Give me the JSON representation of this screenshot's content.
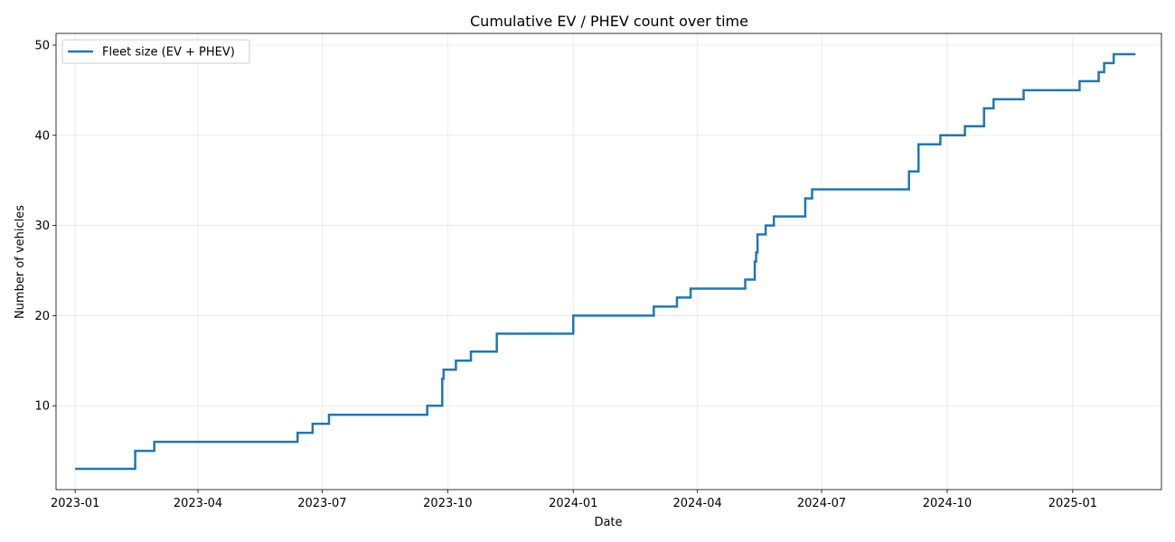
{
  "chart_data": {
    "type": "line",
    "title": "Cumulative EV / PHEV count over time",
    "xlabel": "Date",
    "ylabel": "Number of vehicles",
    "x_axis": "date",
    "xlim": [
      "2022-12-18",
      "2025-03-07"
    ],
    "ylim": [
      0.7,
      51.3
    ],
    "x_ticks": [
      "2023-01-01",
      "2023-04-01",
      "2023-07-01",
      "2023-10-01",
      "2024-01-01",
      "2024-04-01",
      "2024-07-01",
      "2024-10-01",
      "2025-01-01"
    ],
    "x_tick_labels": [
      "2023-01",
      "2023-04",
      "2023-07",
      "2023-10",
      "2024-01",
      "2024-04",
      "2024-07",
      "2024-10",
      "2025-01"
    ],
    "y_ticks": [
      10,
      20,
      30,
      40,
      50
    ],
    "y_tick_labels": [
      "10",
      "20",
      "30",
      "40",
      "50"
    ],
    "grid": true,
    "legend_position": "upper-left",
    "line_color": "#1f77b4",
    "series": [
      {
        "name": "Fleet size (EV + PHEV)",
        "step": true,
        "points": [
          [
            "2023-01-01",
            3
          ],
          [
            "2023-02-14",
            5
          ],
          [
            "2023-02-28",
            6
          ],
          [
            "2023-06-13",
            7
          ],
          [
            "2023-06-24",
            8
          ],
          [
            "2023-07-06",
            9
          ],
          [
            "2023-09-16",
            10
          ],
          [
            "2023-09-27",
            13
          ],
          [
            "2023-09-28",
            14
          ],
          [
            "2023-10-07",
            15
          ],
          [
            "2023-10-18",
            16
          ],
          [
            "2023-11-06",
            18
          ],
          [
            "2024-01-01",
            20
          ],
          [
            "2024-02-29",
            21
          ],
          [
            "2024-03-17",
            22
          ],
          [
            "2024-03-27",
            23
          ],
          [
            "2024-05-06",
            24
          ],
          [
            "2024-05-13",
            26
          ],
          [
            "2024-05-14",
            27
          ],
          [
            "2024-05-15",
            29
          ],
          [
            "2024-05-21",
            30
          ],
          [
            "2024-05-27",
            31
          ],
          [
            "2024-06-19",
            33
          ],
          [
            "2024-06-24",
            34
          ],
          [
            "2024-09-03",
            36
          ],
          [
            "2024-09-10",
            39
          ],
          [
            "2024-09-26",
            40
          ],
          [
            "2024-10-14",
            41
          ],
          [
            "2024-10-28",
            43
          ],
          [
            "2024-11-04",
            44
          ],
          [
            "2024-11-26",
            45
          ],
          [
            "2025-01-06",
            46
          ],
          [
            "2025-01-20",
            47
          ],
          [
            "2025-01-24",
            48
          ],
          [
            "2025-01-31",
            49
          ],
          [
            "2025-02-16",
            49
          ]
        ]
      }
    ]
  }
}
